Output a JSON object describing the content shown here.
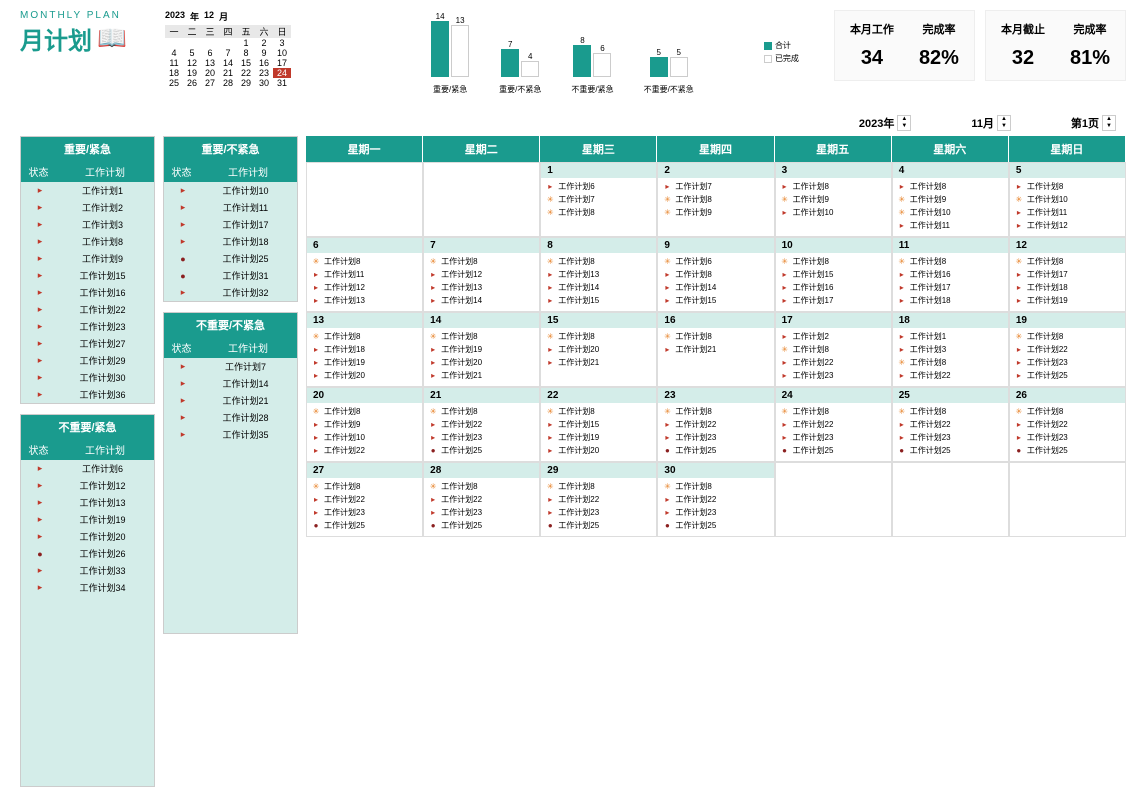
{
  "title": {
    "en": "MONTHLY PLAN",
    "cn": "月计划"
  },
  "miniCal": {
    "year": "2023",
    "yearSuffix": "年",
    "month": "12",
    "monthSuffix": "月",
    "weekdays": [
      "一",
      "二",
      "三",
      "四",
      "五",
      "六",
      "日"
    ],
    "rows": [
      [
        "",
        "",
        "",
        "",
        "1",
        "2",
        "3"
      ],
      [
        "4",
        "5",
        "6",
        "7",
        "8",
        "9",
        "10"
      ],
      [
        "11",
        "12",
        "13",
        "14",
        "15",
        "16",
        "17"
      ],
      [
        "18",
        "19",
        "20",
        "21",
        "22",
        "23",
        "24"
      ],
      [
        "25",
        "26",
        "27",
        "28",
        "29",
        "30",
        "31"
      ]
    ],
    "highlight": "24"
  },
  "chart": {
    "groups": [
      {
        "label": "重要/紧急",
        "v1": 14,
        "v2": 13,
        "h1": 56,
        "h2": 52
      },
      {
        "label": "重要/不紧急",
        "v1": 7,
        "v2": 4,
        "h1": 28,
        "h2": 16
      },
      {
        "label": "不重要/紧急",
        "v1": 8,
        "v2": 6,
        "h1": 32,
        "h2": 24
      },
      {
        "label": "不重要/不紧急",
        "v1": 5,
        "v2": 5,
        "h1": 20,
        "h2": 20
      }
    ],
    "legend": {
      "a": "合计",
      "b": "已完成"
    },
    "colors": {
      "teal": "#1a9b8e",
      "white": "#ffffff"
    }
  },
  "stats": [
    {
      "c1": {
        "lbl": "本月工作",
        "val": "34"
      },
      "c2": {
        "lbl": "完成率",
        "val": "82%"
      }
    },
    {
      "c1": {
        "lbl": "本月截止",
        "val": "32"
      },
      "c2": {
        "lbl": "完成率",
        "val": "81%"
      }
    }
  ],
  "controls": {
    "year": "2023年",
    "month": "11月",
    "page": "第1页"
  },
  "quadrants": [
    {
      "title": "重要/紧急",
      "h1": "状态",
      "h2": "工作计划",
      "items": [
        {
          "i": "flag",
          "t": "工作计划1"
        },
        {
          "i": "flag",
          "t": "工作计划2"
        },
        {
          "i": "flag",
          "t": "工作计划3"
        },
        {
          "i": "flag",
          "t": "工作计划8"
        },
        {
          "i": "flag",
          "t": "工作计划9"
        },
        {
          "i": "flag",
          "t": "工作计划15"
        },
        {
          "i": "flag",
          "t": "工作计划16"
        },
        {
          "i": "flag",
          "t": "工作计划22"
        },
        {
          "i": "flag",
          "t": "工作计划23"
        },
        {
          "i": "flag",
          "t": "工作计划27"
        },
        {
          "i": "flag",
          "t": "工作计划29"
        },
        {
          "i": "flag",
          "t": "工作计划30"
        },
        {
          "i": "flag",
          "t": "工作计划36"
        }
      ]
    },
    {
      "title": "重要/不紧急",
      "h1": "状态",
      "h2": "工作计划",
      "items": [
        {
          "i": "flag",
          "t": "工作计划10"
        },
        {
          "i": "flag",
          "t": "工作计划11"
        },
        {
          "i": "flag",
          "t": "工作计划17"
        },
        {
          "i": "flag",
          "t": "工作计划18"
        },
        {
          "i": "circ",
          "t": "工作计划25"
        },
        {
          "i": "circ",
          "t": "工作计划31"
        },
        {
          "i": "flag",
          "t": "工作计划32"
        }
      ]
    },
    {
      "title": "不重要/紧急",
      "h1": "状态",
      "h2": "工作计划",
      "items": [
        {
          "i": "flag",
          "t": "工作计划6"
        },
        {
          "i": "flag",
          "t": "工作计划12"
        },
        {
          "i": "flag",
          "t": "工作计划13"
        },
        {
          "i": "flag",
          "t": "工作计划19"
        },
        {
          "i": "flag",
          "t": "工作计划20"
        },
        {
          "i": "circ",
          "t": "工作计划26"
        },
        {
          "i": "flag",
          "t": "工作计划33"
        },
        {
          "i": "flag",
          "t": "工作计划34"
        }
      ]
    },
    {
      "title": "不重要/不紧急",
      "h1": "状态",
      "h2": "工作计划",
      "items": [
        {
          "i": "flag",
          "t": "工作计划7"
        },
        {
          "i": "flag",
          "t": "工作计划14"
        },
        {
          "i": "flag",
          "t": "工作计划21"
        },
        {
          "i": "flag",
          "t": "工作计划28"
        },
        {
          "i": "flag",
          "t": "工作计划35"
        }
      ]
    }
  ],
  "calendar": {
    "weekdays": [
      "星期一",
      "星期二",
      "星期三",
      "星期四",
      "星期五",
      "星期六",
      "星期日"
    ],
    "cells": [
      {
        "d": "",
        "items": []
      },
      {
        "d": "",
        "items": []
      },
      {
        "d": "1",
        "items": [
          {
            "i": "flag",
            "t": "工作计划6"
          },
          {
            "i": "light",
            "t": "工作计划7"
          },
          {
            "i": "light",
            "t": "工作计划8"
          }
        ]
      },
      {
        "d": "2",
        "items": [
          {
            "i": "flag",
            "t": "工作计划7"
          },
          {
            "i": "light",
            "t": "工作计划8"
          },
          {
            "i": "light",
            "t": "工作计划9"
          }
        ]
      },
      {
        "d": "3",
        "items": [
          {
            "i": "flag",
            "t": "工作计划8"
          },
          {
            "i": "light",
            "t": "工作计划9"
          },
          {
            "i": "flag",
            "t": "工作计划10"
          }
        ]
      },
      {
        "d": "4",
        "items": [
          {
            "i": "flag",
            "t": "工作计划8"
          },
          {
            "i": "light",
            "t": "工作计划9"
          },
          {
            "i": "light",
            "t": "工作计划10"
          },
          {
            "i": "flag",
            "t": "工作计划11"
          }
        ]
      },
      {
        "d": "5",
        "items": [
          {
            "i": "flag",
            "t": "工作计划8"
          },
          {
            "i": "light",
            "t": "工作计划10"
          },
          {
            "i": "flag",
            "t": "工作计划11"
          },
          {
            "i": "flag",
            "t": "工作计划12"
          }
        ]
      },
      {
        "d": "6",
        "items": [
          {
            "i": "light",
            "t": "工作计划8"
          },
          {
            "i": "flag",
            "t": "工作计划11"
          },
          {
            "i": "flag",
            "t": "工作计划12"
          },
          {
            "i": "flag",
            "t": "工作计划13"
          }
        ]
      },
      {
        "d": "7",
        "items": [
          {
            "i": "light",
            "t": "工作计划8"
          },
          {
            "i": "flag",
            "t": "工作计划12"
          },
          {
            "i": "flag",
            "t": "工作计划13"
          },
          {
            "i": "flag",
            "t": "工作计划14"
          }
        ]
      },
      {
        "d": "8",
        "items": [
          {
            "i": "light",
            "t": "工作计划8"
          },
          {
            "i": "flag",
            "t": "工作计划13"
          },
          {
            "i": "flag",
            "t": "工作计划14"
          },
          {
            "i": "flag",
            "t": "工作计划15"
          }
        ]
      },
      {
        "d": "9",
        "items": [
          {
            "i": "light",
            "t": "工作计划6"
          },
          {
            "i": "flag",
            "t": "工作计划8"
          },
          {
            "i": "flag",
            "t": "工作计划14"
          },
          {
            "i": "flag",
            "t": "工作计划15"
          }
        ]
      },
      {
        "d": "10",
        "items": [
          {
            "i": "light",
            "t": "工作计划8"
          },
          {
            "i": "flag",
            "t": "工作计划15"
          },
          {
            "i": "flag",
            "t": "工作计划16"
          },
          {
            "i": "flag",
            "t": "工作计划17"
          }
        ]
      },
      {
        "d": "11",
        "items": [
          {
            "i": "light",
            "t": "工作计划8"
          },
          {
            "i": "flag",
            "t": "工作计划16"
          },
          {
            "i": "flag",
            "t": "工作计划17"
          },
          {
            "i": "flag",
            "t": "工作计划18"
          }
        ]
      },
      {
        "d": "12",
        "items": [
          {
            "i": "light",
            "t": "工作计划8"
          },
          {
            "i": "flag",
            "t": "工作计划17"
          },
          {
            "i": "flag",
            "t": "工作计划18"
          },
          {
            "i": "flag",
            "t": "工作计划19"
          }
        ]
      },
      {
        "d": "13",
        "items": [
          {
            "i": "light",
            "t": "工作计划8"
          },
          {
            "i": "flag",
            "t": "工作计划18"
          },
          {
            "i": "flag",
            "t": "工作计划19"
          },
          {
            "i": "flag",
            "t": "工作计划20"
          }
        ]
      },
      {
        "d": "14",
        "items": [
          {
            "i": "light",
            "t": "工作计划8"
          },
          {
            "i": "flag",
            "t": "工作计划19"
          },
          {
            "i": "flag",
            "t": "工作计划20"
          },
          {
            "i": "flag",
            "t": "工作计划21"
          }
        ]
      },
      {
        "d": "15",
        "items": [
          {
            "i": "light",
            "t": "工作计划8"
          },
          {
            "i": "flag",
            "t": "工作计划20"
          },
          {
            "i": "flag",
            "t": "工作计划21"
          }
        ]
      },
      {
        "d": "16",
        "items": [
          {
            "i": "light",
            "t": "工作计划8"
          },
          {
            "i": "flag",
            "t": "工作计划21"
          }
        ]
      },
      {
        "d": "17",
        "items": [
          {
            "i": "flag",
            "t": "工作计划2"
          },
          {
            "i": "light",
            "t": "工作计划8"
          },
          {
            "i": "flag",
            "t": "工作计划22"
          },
          {
            "i": "flag",
            "t": "工作计划23"
          }
        ]
      },
      {
        "d": "18",
        "items": [
          {
            "i": "flag",
            "t": "工作计划1"
          },
          {
            "i": "flag",
            "t": "工作计划3"
          },
          {
            "i": "light",
            "t": "工作计划8"
          },
          {
            "i": "flag",
            "t": "工作计划22"
          }
        ]
      },
      {
        "d": "19",
        "items": [
          {
            "i": "light",
            "t": "工作计划8"
          },
          {
            "i": "flag",
            "t": "工作计划22"
          },
          {
            "i": "flag",
            "t": "工作计划23"
          },
          {
            "i": "flag",
            "t": "工作计划25"
          }
        ]
      },
      {
        "d": "20",
        "items": [
          {
            "i": "light",
            "t": "工作计划8"
          },
          {
            "i": "flag",
            "t": "工作计划9"
          },
          {
            "i": "flag",
            "t": "工作计划10"
          },
          {
            "i": "flag",
            "t": "工作计划22"
          }
        ]
      },
      {
        "d": "21",
        "items": [
          {
            "i": "light",
            "t": "工作计划8"
          },
          {
            "i": "flag",
            "t": "工作计划22"
          },
          {
            "i": "flag",
            "t": "工作计划23"
          },
          {
            "i": "circ",
            "t": "工作计划25"
          }
        ]
      },
      {
        "d": "22",
        "items": [
          {
            "i": "light",
            "t": "工作计划8"
          },
          {
            "i": "flag",
            "t": "工作计划15"
          },
          {
            "i": "flag",
            "t": "工作计划19"
          },
          {
            "i": "flag",
            "t": "工作计划20"
          }
        ]
      },
      {
        "d": "23",
        "items": [
          {
            "i": "light",
            "t": "工作计划8"
          },
          {
            "i": "flag",
            "t": "工作计划22"
          },
          {
            "i": "flag",
            "t": "工作计划23"
          },
          {
            "i": "circ",
            "t": "工作计划25"
          }
        ]
      },
      {
        "d": "24",
        "items": [
          {
            "i": "light",
            "t": "工作计划8"
          },
          {
            "i": "flag",
            "t": "工作计划22"
          },
          {
            "i": "flag",
            "t": "工作计划23"
          },
          {
            "i": "circ",
            "t": "工作计划25"
          }
        ]
      },
      {
        "d": "25",
        "items": [
          {
            "i": "light",
            "t": "工作计划8"
          },
          {
            "i": "flag",
            "t": "工作计划22"
          },
          {
            "i": "flag",
            "t": "工作计划23"
          },
          {
            "i": "circ",
            "t": "工作计划25"
          }
        ]
      },
      {
        "d": "26",
        "items": [
          {
            "i": "light",
            "t": "工作计划8"
          },
          {
            "i": "flag",
            "t": "工作计划22"
          },
          {
            "i": "flag",
            "t": "工作计划23"
          },
          {
            "i": "circ",
            "t": "工作计划25"
          }
        ]
      },
      {
        "d": "27",
        "items": [
          {
            "i": "light",
            "t": "工作计划8"
          },
          {
            "i": "flag",
            "t": "工作计划22"
          },
          {
            "i": "flag",
            "t": "工作计划23"
          },
          {
            "i": "circ",
            "t": "工作计划25"
          }
        ]
      },
      {
        "d": "28",
        "items": [
          {
            "i": "light",
            "t": "工作计划8"
          },
          {
            "i": "flag",
            "t": "工作计划22"
          },
          {
            "i": "flag",
            "t": "工作计划23"
          },
          {
            "i": "circ",
            "t": "工作计划25"
          }
        ]
      },
      {
        "d": "29",
        "items": [
          {
            "i": "light",
            "t": "工作计划8"
          },
          {
            "i": "flag",
            "t": "工作计划22"
          },
          {
            "i": "flag",
            "t": "工作计划23"
          },
          {
            "i": "circ",
            "t": "工作计划25"
          }
        ]
      },
      {
        "d": "30",
        "items": [
          {
            "i": "light",
            "t": "工作计划8"
          },
          {
            "i": "flag",
            "t": "工作计划22"
          },
          {
            "i": "flag",
            "t": "工作计划23"
          },
          {
            "i": "circ",
            "t": "工作计划25"
          }
        ]
      },
      {
        "d": "",
        "items": []
      },
      {
        "d": "",
        "items": []
      },
      {
        "d": "",
        "items": []
      }
    ]
  },
  "icons": {
    "flag": "▸",
    "light": "✳",
    "face": "☻",
    "circ": "●",
    "book": "📖"
  }
}
